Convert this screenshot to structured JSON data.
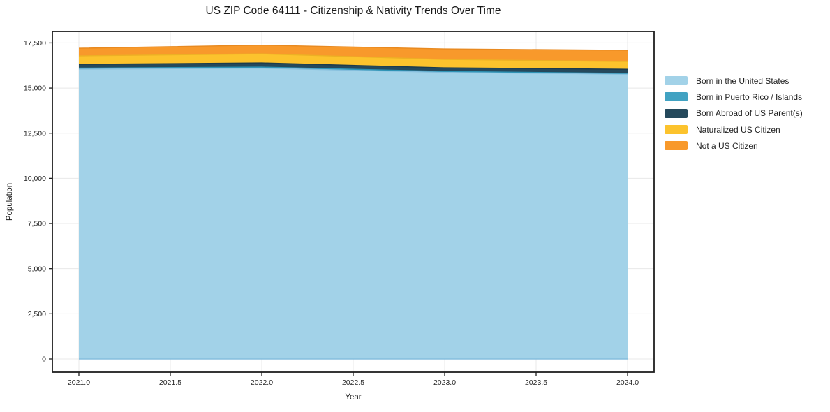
{
  "chart_data": {
    "type": "area",
    "stacked": true,
    "title": "US ZIP Code 64111 - Citizenship & Nativity Trends Over Time",
    "xlabel": "Year",
    "ylabel": "Population",
    "x": [
      2021,
      2022,
      2023,
      2024
    ],
    "series": [
      {
        "name": "Born in the United States",
        "color": "#a2d2e8",
        "edge": "#85bedd",
        "values": [
          16045,
          16100,
          15870,
          15770
        ]
      },
      {
        "name": "Born in Puerto Rico / Islands",
        "color": "#41a2c2",
        "edge": "#2e93b5",
        "values": [
          60,
          60,
          55,
          40
        ]
      },
      {
        "name": "Born Abroad of US Parent(s)",
        "color": "#25495c",
        "edge": "#1c3b4d",
        "values": [
          210,
          230,
          195,
          230
        ]
      },
      {
        "name": "Naturalized US Citizen",
        "color": "#fcc32d",
        "edge": "#edb024",
        "values": [
          465,
          505,
          465,
          430
        ]
      },
      {
        "name": "Not a US Citizen",
        "color": "#f8992b",
        "edge": "#e8891f",
        "values": [
          425,
          480,
          580,
          620
        ]
      }
    ],
    "xlim": [
      2020.855,
      2024.145
    ],
    "ylim": [
      -735,
      18135
    ],
    "xticks": [
      {
        "v": 2021.0,
        "label": "2021.0"
      },
      {
        "v": 2021.5,
        "label": "2021.5"
      },
      {
        "v": 2022.0,
        "label": "2022.0"
      },
      {
        "v": 2022.5,
        "label": "2022.5"
      },
      {
        "v": 2023.0,
        "label": "2023.0"
      },
      {
        "v": 2023.5,
        "label": "2023.5"
      },
      {
        "v": 2024.0,
        "label": "2024.0"
      }
    ],
    "yticks": [
      {
        "v": 0,
        "label": "0"
      },
      {
        "v": 2500,
        "label": "2,500"
      },
      {
        "v": 5000,
        "label": "5,000"
      },
      {
        "v": 7500,
        "label": "7,500"
      },
      {
        "v": 10000,
        "label": "10,000"
      },
      {
        "v": 12500,
        "label": "12,500"
      },
      {
        "v": 15000,
        "label": "15,000"
      },
      {
        "v": 17500,
        "label": "17,500"
      }
    ],
    "grid": true,
    "grid_color": "#e8e8e8",
    "spine_color": "#1f1f1f",
    "legend_position": "right"
  }
}
